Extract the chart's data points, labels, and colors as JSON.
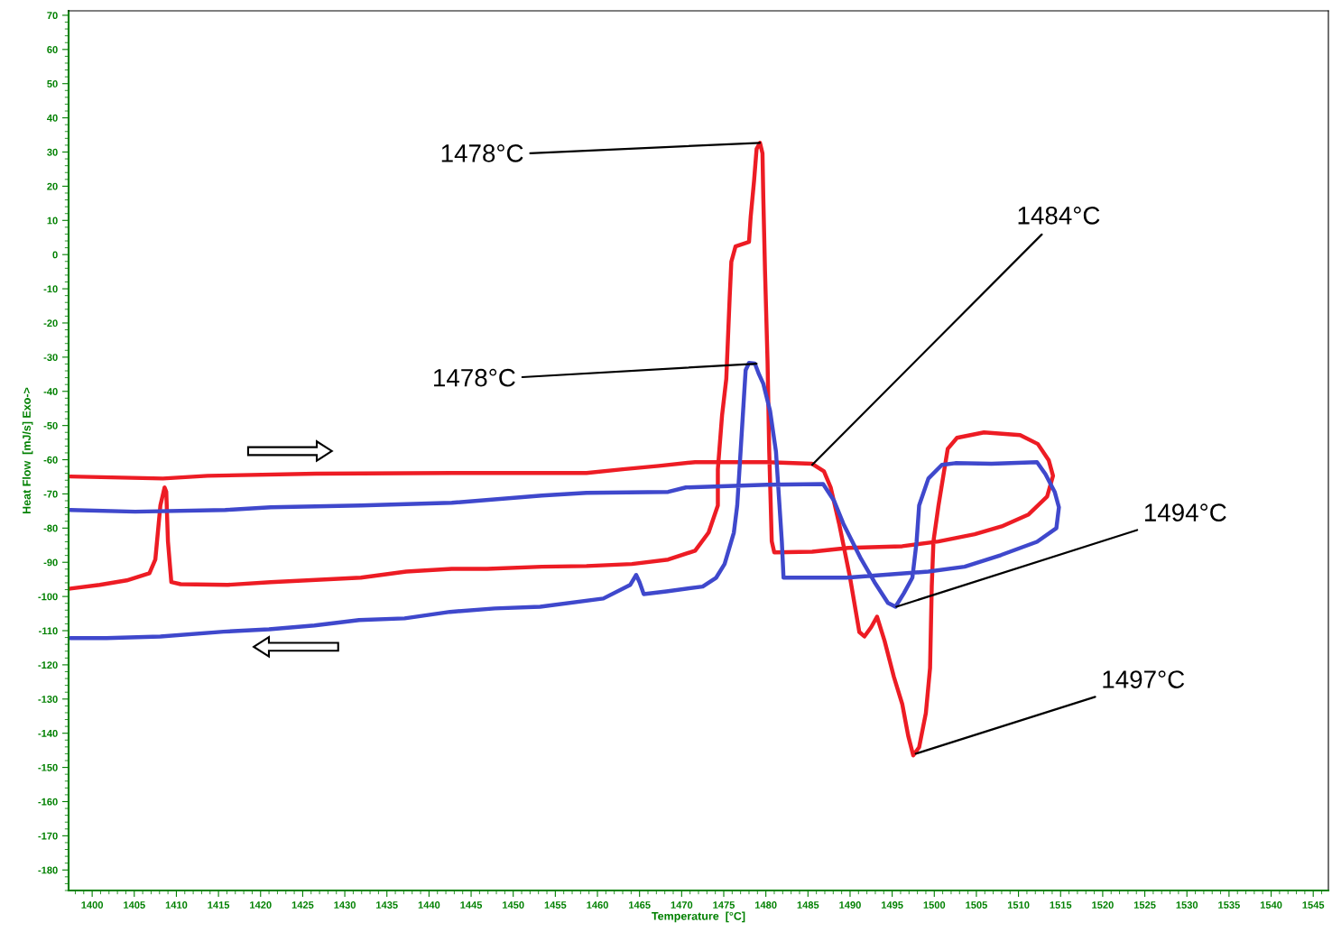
{
  "chart_data": {
    "type": "line",
    "xlabel": "Temperature  [°C]",
    "ylabel": "Heat Flow  [mJ/s] Exo->",
    "xlim": [
      1397.2,
      1546.8
    ],
    "ylim": [
      -186,
      71.3
    ],
    "xticks": [
      1400,
      1405,
      1410,
      1415,
      1420,
      1425,
      1430,
      1435,
      1440,
      1445,
      1450,
      1455,
      1460,
      1465,
      1470,
      1475,
      1480,
      1485,
      1490,
      1495,
      1500,
      1505,
      1510,
      1515,
      1520,
      1525,
      1530,
      1535,
      1540,
      1545
    ],
    "yticks": [
      70,
      60,
      50,
      40,
      30,
      20,
      10,
      0,
      -10,
      -20,
      -30,
      -40,
      -50,
      -60,
      -70,
      -80,
      -90,
      -100,
      -110,
      -120,
      -130,
      -140,
      -150,
      -160,
      -170,
      -180
    ],
    "grid": false,
    "legend": false,
    "marker": "none",
    "line_style": "solid",
    "series": [
      {
        "color": "#ed1c24",
        "x": [
          1397.4,
          1408.4,
          1413.7,
          1426.6,
          1442.7,
          1458.7,
          1463,
          1467.3,
          1471.6,
          1480.2,
          1485.5,
          1486.9,
          1487.7,
          1488.7,
          1490,
          1491.1,
          1491.7,
          1492.5,
          1493.2,
          1494.1,
          1495.2,
          1496.2,
          1496.9,
          1497.5,
          1498.2,
          1499,
          1499.5,
          1499.7,
          1499.9,
          1500.5,
          1501.2,
          1501.6,
          1502.7,
          1505.9,
          1510.2,
          1512.3,
          1513.6,
          1514.1,
          1513.4,
          1511.2,
          1508,
          1504.8,
          1500.5,
          1496.2,
          1489.8,
          1485.5,
          1481,
          1480.7,
          1480.4,
          1480.2,
          1479.9,
          1479.7,
          1479.6,
          1479.3,
          1478.9,
          1478.6,
          1478.2,
          1478,
          1476.4,
          1475.9,
          1475.7,
          1475.3,
          1474.8,
          1474.3,
          1474.3,
          1473.2,
          1471.6,
          1468.4,
          1464.1,
          1458.7,
          1453.4,
          1446.9,
          1442.7,
          1437.3,
          1431.9,
          1421.2,
          1416.1,
          1410.5,
          1409.4,
          1409,
          1408.8,
          1408.6,
          1408.1,
          1407.5,
          1406.8,
          1404.1,
          1400.9,
          1397.4
        ],
        "values": [
          -64.9,
          -65.5,
          -64.7,
          -64.1,
          -63.9,
          -63.9,
          -62.8,
          -61.8,
          -60.7,
          -60.7,
          -61.2,
          -63.4,
          -68.1,
          -78.7,
          -94.5,
          -110.4,
          -111.7,
          -109,
          -105.9,
          -113,
          -123.5,
          -131.5,
          -140.7,
          -146.5,
          -144.1,
          -134.1,
          -120.9,
          -97.1,
          -83.9,
          -73.4,
          -62.8,
          -56.8,
          -53.6,
          -52,
          -52.8,
          -55.4,
          -60.2,
          -64.7,
          -70.8,
          -76,
          -79.5,
          -81.8,
          -83.9,
          -85.3,
          -85.8,
          -86.9,
          -87.1,
          -83.9,
          -57.6,
          -31.2,
          -4.8,
          16.4,
          29.6,
          32.7,
          30.9,
          21.6,
          11.1,
          3.7,
          2.4,
          -2.1,
          -12.7,
          -36.4,
          -47,
          -62.8,
          -73.4,
          -81.3,
          -86.6,
          -89.2,
          -90.5,
          -91.1,
          -91.3,
          -91.9,
          -91.9,
          -92.7,
          -94.5,
          -95.8,
          -96.6,
          -96.4,
          -95.8,
          -83.9,
          -69.4,
          -68.1,
          -73.4,
          -89.2,
          -93.2,
          -95.3,
          -96.6,
          -97.7
        ]
      },
      {
        "color": "#3f48cc",
        "x": [
          1397.4,
          1405.1,
          1415.8,
          1421.2,
          1431.9,
          1442.7,
          1453.4,
          1458.7,
          1468.4,
          1470.5,
          1480.2,
          1486.8,
          1488.1,
          1489.2,
          1491.3,
          1492.9,
          1494.5,
          1495.4,
          1496.4,
          1497.4,
          1497.9,
          1498.2,
          1499.3,
          1500.9,
          1502.5,
          1506.8,
          1512.2,
          1513.2,
          1514.3,
          1514.8,
          1514.5,
          1512.2,
          1507.9,
          1503.6,
          1499.3,
          1493.9,
          1489.6,
          1485.3,
          1482.1,
          1481.9,
          1481.2,
          1480.5,
          1479.7,
          1479.2,
          1478.7,
          1478,
          1477.6,
          1477.4,
          1477,
          1476.6,
          1476.2,
          1475.1,
          1474.1,
          1472.5,
          1468.2,
          1465.5,
          1465,
          1464.6,
          1463.9,
          1460.7,
          1453.2,
          1447.8,
          1442.5,
          1437.1,
          1431.7,
          1426.4,
          1421.0,
          1415.6,
          1408.1,
          1401.7,
          1397.4
        ],
        "values": [
          -74.7,
          -75.2,
          -74.7,
          -73.9,
          -73.4,
          -72.6,
          -70.5,
          -69.7,
          -69.4,
          -68.1,
          -67.3,
          -67.1,
          -72,
          -78.7,
          -89,
          -95.8,
          -101.9,
          -103,
          -99,
          -94.5,
          -84,
          -73.4,
          -65.5,
          -61.5,
          -61,
          -61.2,
          -60.7,
          -64.2,
          -69.4,
          -73.9,
          -80,
          -84,
          -87.9,
          -91.3,
          -92.7,
          -93.7,
          -94.5,
          -94.5,
          -94.5,
          -84,
          -57.6,
          -45.7,
          -37.8,
          -35.1,
          -31.9,
          -31.7,
          -33.8,
          -41.7,
          -57.6,
          -73.4,
          -81.3,
          -90.5,
          -94.5,
          -97.1,
          -98.5,
          -99.3,
          -95.8,
          -93.7,
          -96.6,
          -100.6,
          -103,
          -103.5,
          -104.5,
          -106.4,
          -106.9,
          -108.5,
          -109.6,
          -110.3,
          -111.7,
          -112.2,
          -112.2
        ]
      }
    ],
    "annotations": [
      {
        "text": "1478°C",
        "x": 1479.3,
        "y": 32.7
      },
      {
        "text": "1478°C",
        "x": 1478.9,
        "y": -31.9
      },
      {
        "text": "1484°C",
        "x": 1485.5,
        "y": -61.5
      },
      {
        "text": "1494°C",
        "x": 1495.5,
        "y": -103
      },
      {
        "text": "1497°C",
        "x": 1497.8,
        "y": -146
      }
    ]
  }
}
